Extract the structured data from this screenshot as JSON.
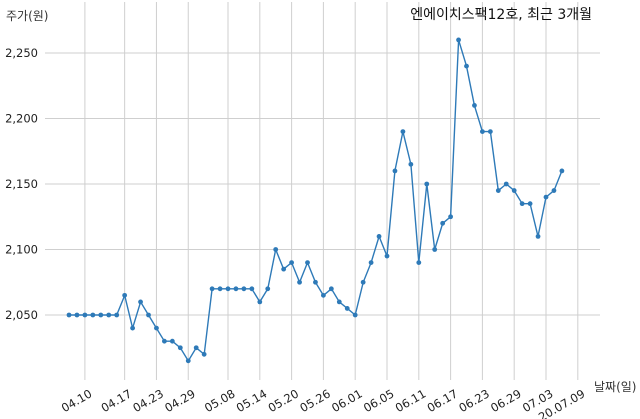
{
  "chart_data": {
    "type": "line",
    "title": "엔에이치스팩12호, 최근 3개월",
    "ylabel": "주가(원)",
    "xlabel": "날짜(일)",
    "ylim": [
      2000,
      2270
    ],
    "yticks": [
      2050,
      2100,
      2150,
      2200,
      2250
    ],
    "ytick_labels": [
      "2,050",
      "2,100",
      "2,150",
      "2,200",
      "2,250"
    ],
    "grid": true,
    "color": "#2e7ab8",
    "x_tick_labels": [
      "04.10",
      "04.17",
      "04.23",
      "04.29",
      "05.08",
      "05.14",
      "05.20",
      "05.26",
      "06.01",
      "06.05",
      "06.11",
      "06.17",
      "06.23",
      "06.29",
      "07.03",
      "20.07.09"
    ],
    "x_tick_positions": [
      2,
      7,
      11,
      15,
      20,
      24,
      28,
      32,
      36,
      40,
      44,
      48,
      52,
      56,
      60,
      64
    ],
    "series": [
      {
        "name": "",
        "values": [
          2050,
          2050,
          2050,
          2050,
          2050,
          2050,
          2050,
          2065,
          2040,
          2060,
          2050,
          2040,
          2030,
          2030,
          2025,
          2015,
          2025,
          2020,
          2070,
          2070,
          2070,
          2070,
          2070,
          2070,
          2060,
          2070,
          2100,
          2085,
          2090,
          2075,
          2090,
          2075,
          2065,
          2070,
          2060,
          2055,
          2050,
          2075,
          2090,
          2110,
          2095,
          2160,
          2190,
          2165,
          2090,
          2150,
          2100,
          2120,
          2125,
          2260,
          2240,
          2210,
          2190,
          2190,
          2145,
          2150,
          2145,
          2135,
          2135,
          2110,
          2140,
          2145,
          2160
        ]
      }
    ]
  }
}
